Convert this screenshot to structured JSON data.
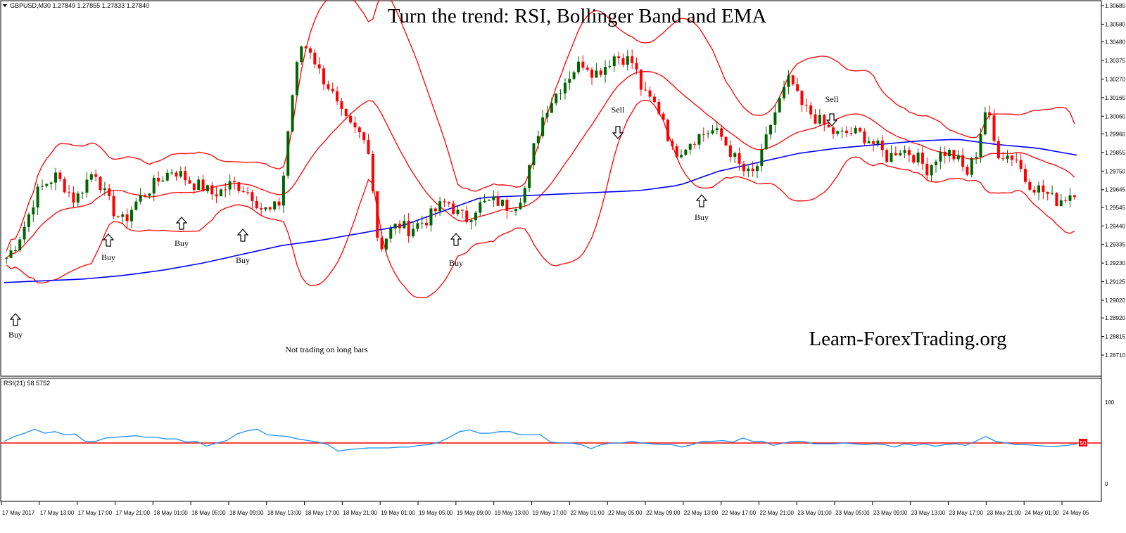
{
  "symbol_info": "GBPUSD,M30  1.27849 1.27855 1.27833 1.27840",
  "rsi_info": "RSI(21) 58.5752",
  "title": "Turn the trend: RSI, Bollinger Band and EMA",
  "watermark": "Learn-ForexTrading.org",
  "colors": {
    "bull": "#006400",
    "bear": "#ff0000",
    "bands": "#ff0000",
    "ema": "#0000ff",
    "rsi": "#1e90ff",
    "rsi_level": "#ff0000"
  },
  "chart_data": {
    "type": "candlestick",
    "price_axis": {
      "ticks": [
        "1.30685",
        "1.30580",
        "1.30480",
        "1.30375",
        "1.30270",
        "1.30165",
        "1.30060",
        "1.29960",
        "1.29855",
        "1.29750",
        "1.29645",
        "1.29545",
        "1.29440",
        "1.29335",
        "1.29230",
        "1.29125",
        "1.29020",
        "1.28920",
        "1.28815",
        "1.28710"
      ],
      "range": [
        1.2871,
        1.30685
      ]
    },
    "time_axis": {
      "ticks": [
        "17 May 2017",
        "17 May 13:00",
        "17 May 17:00",
        "17 May 21:00",
        "18 May 01:00",
        "18 May 05:00",
        "18 May 09:00",
        "18 May 13:00",
        "18 May 17:00",
        "18 May 21:00",
        "19 May 01:00",
        "19 May 05:00",
        "19 May 09:00",
        "19 May 13:00",
        "19 May 17:00",
        "22 May 01:00",
        "22 May 05:00",
        "22 May 09:00",
        "22 May 13:00",
        "22 May 17:00",
        "22 May 21:00",
        "23 May 01:00",
        "23 May 05:00",
        "23 May 09:00",
        "23 May 13:00",
        "23 May 17:00",
        "23 May 21:00",
        "24 May 01:00",
        "24 May 05"
      ]
    },
    "price_path": [
      1.2926,
      1.2934,
      1.2946,
      1.2962,
      1.2968,
      1.2972,
      1.2966,
      1.2958,
      1.2968,
      1.2976,
      1.2962,
      1.2952,
      1.2946,
      1.2956,
      1.2962,
      1.2967,
      1.2972,
      1.2976,
      1.2972,
      1.2968,
      1.2966,
      1.2962,
      1.2964,
      1.2968,
      1.2966,
      1.2962,
      1.2954,
      1.2952,
      1.2958,
      1.3012,
      1.3046,
      1.3044,
      1.303,
      1.3022,
      1.3008,
      1.3,
      1.2996,
      1.2988,
      1.293,
      1.294,
      1.2945,
      1.2942,
      1.2945,
      1.2948,
      1.2954,
      1.2958,
      1.2951,
      1.2948,
      1.2955,
      1.2957,
      1.2958,
      1.2955,
      1.2957,
      1.2966,
      1.2993,
      1.301,
      1.3018,
      1.3026,
      1.3033,
      1.3037,
      1.303,
      1.3034,
      1.304,
      1.3039,
      1.3036,
      1.3018,
      1.3014,
      1.3006,
      1.2985,
      1.2988,
      1.2993,
      1.2996,
      1.2998,
      1.2994,
      1.2985,
      1.2976,
      1.2972,
      1.2982,
      1.3002,
      1.3016,
      1.3028,
      1.3012,
      1.3008,
      1.3003,
      1.2998,
      1.2995,
      1.2997,
      1.2996,
      1.2993,
      1.2988,
      1.2982,
      1.2988,
      1.2986,
      1.2982,
      1.2976,
      1.2984,
      1.2986,
      1.2982,
      1.2973,
      1.2986,
      1.3012,
      1.2986,
      1.2984,
      1.2983,
      1.297,
      1.2966,
      1.2963,
      1.2958,
      1.296,
      1.2964
    ],
    "ema_path": [
      1.2912,
      1.2913,
      1.2914,
      1.2916,
      1.2919,
      1.2923,
      1.2928,
      1.2933,
      1.2936,
      1.294,
      1.2944,
      1.2952,
      1.296,
      1.2961,
      1.2962,
      1.2963,
      1.2964,
      1.2967,
      1.2975,
      1.298,
      1.2985,
      1.2988,
      1.299,
      1.2992,
      1.2993,
      1.299,
      1.2988,
      1.2984
    ],
    "series": [
      {
        "name": "RSI(21)",
        "values": [
          52,
          58,
          62,
          67,
          62,
          64,
          60,
          61,
          52,
          52,
          56,
          57,
          58,
          59,
          57,
          57,
          55,
          55,
          51,
          52,
          46,
          50,
          53,
          61,
          65,
          67,
          60,
          59,
          58,
          55,
          53,
          51,
          48,
          40,
          42,
          43,
          44,
          44,
          44,
          45,
          45,
          47,
          48,
          51,
          57,
          64,
          66,
          62,
          62,
          64,
          64,
          60,
          60,
          60,
          51,
          50,
          50,
          48,
          43,
          48,
          50,
          50,
          52,
          50,
          49,
          48,
          48,
          45,
          48,
          52,
          52,
          53,
          51,
          56,
          52,
          52,
          47,
          50,
          52,
          52,
          49,
          49,
          49,
          50,
          49,
          48,
          49,
          48,
          45,
          49,
          47,
          49,
          46,
          48,
          49,
          47,
          52,
          58,
          52,
          50,
          48,
          48,
          47,
          46,
          46,
          47,
          49
        ]
      }
    ],
    "rsi_axis": {
      "ticks": [
        "100",
        "0"
      ],
      "range": [
        0,
        100
      ],
      "level": 50,
      "level_label": "50"
    },
    "annotations": [
      {
        "label": "Buy",
        "arrow": "up"
      },
      {
        "label": "Buy",
        "arrow": "up"
      },
      {
        "label": "Buy",
        "arrow": "up"
      },
      {
        "label": "Buy",
        "arrow": "up"
      },
      {
        "label": "Buy",
        "arrow": "up"
      },
      {
        "label": "Buy",
        "arrow": "up"
      },
      {
        "label": "Sell",
        "arrow": "down"
      },
      {
        "label": "Sell",
        "arrow": "down"
      },
      {
        "label": "Not trading on long bars",
        "arrow": "none"
      }
    ]
  }
}
